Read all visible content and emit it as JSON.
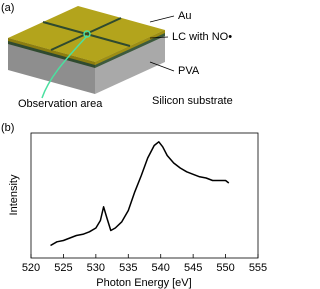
{
  "diagram": {
    "panel_label": "(a)",
    "labels": [
      "Au",
      "LC with NO•",
      "PVA",
      "Silicon substrate",
      "Observation area"
    ]
  },
  "chart_data": {
    "type": "line",
    "panel_label": "(b)",
    "xlabel": "Photon Energy [eV]",
    "ylabel": "Intensity",
    "x": [
      523,
      524,
      525,
      526,
      527,
      528,
      529,
      530,
      530.7,
      531.2,
      531.7,
      532.3,
      533,
      534,
      535,
      536,
      537,
      538,
      539,
      539.7,
      540.3,
      541,
      542,
      543,
      544,
      545,
      546,
      547,
      548,
      549,
      550,
      550.5
    ],
    "series": [
      {
        "color": "#000000",
        "values": [
          0.1,
          0.13,
          0.14,
          0.16,
          0.18,
          0.19,
          0.21,
          0.24,
          0.3,
          0.41,
          0.32,
          0.22,
          0.24,
          0.29,
          0.38,
          0.53,
          0.66,
          0.8,
          0.9,
          0.93,
          0.89,
          0.82,
          0.76,
          0.72,
          0.69,
          0.67,
          0.65,
          0.64,
          0.62,
          0.62,
          0.62,
          0.6
        ]
      }
    ],
    "xlim": [
      520,
      555
    ],
    "xticks": [
      520,
      525,
      530,
      535,
      540,
      545,
      550,
      555
    ],
    "ylim": [
      0,
      1
    ]
  }
}
